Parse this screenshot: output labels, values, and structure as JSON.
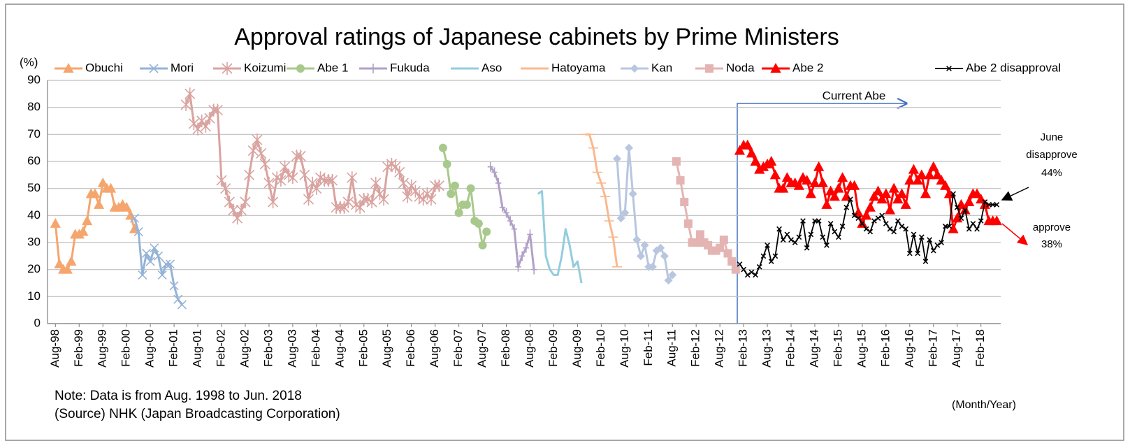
{
  "chart_data": {
    "type": "line",
    "title": "Approval ratings of Japanese cabinets by Prime Ministers",
    "y_label": "(%)",
    "x_label": "(Month/Year)",
    "notes": [
      "Note: Data is from Aug. 1998 to  Jun. 2018",
      "(Source) NHK (Japan Broadcasting Corporation)"
    ],
    "annotations": [
      "Current Abe",
      "June",
      "disapprove",
      "44%",
      "approve",
      "38%"
    ],
    "ylim": [
      0,
      90
    ],
    "yticks": [
      0,
      10,
      20,
      30,
      40,
      50,
      60,
      70,
      80,
      90
    ],
    "xlim": [
      "Jun-98",
      "Jul-18"
    ],
    "xticks": [
      "Aug-98",
      "Feb-99",
      "Aug-99",
      "Feb-00",
      "Aug-00",
      "Feb-01",
      "Aug-01",
      "Feb-02",
      "Aug-02",
      "Feb-03",
      "Aug-03",
      "Feb-04",
      "Aug-04",
      "Feb-05",
      "Aug-05",
      "Feb-06",
      "Aug-06",
      "Feb-07",
      "Aug-07",
      "Feb-08",
      "Aug-08",
      "Feb-09",
      "Aug-09",
      "Feb-10",
      "Aug-10",
      "Feb-11",
      "Aug-11",
      "Feb-12",
      "Aug-12",
      "Feb-13",
      "Aug-13",
      "Feb-14",
      "Aug-14",
      "Feb-15",
      "Aug-15",
      "Feb-16",
      "Aug-16",
      "Feb-17",
      "Aug-17",
      "Feb-18"
    ],
    "grid": true,
    "legend": "top",
    "series": [
      {
        "name": "Obuchi",
        "color": "#f5a66e",
        "marker": "triangle",
        "x": [
          "Aug-98",
          "Sep-98",
          "Oct-98",
          "Nov-98",
          "Dec-98",
          "Jan-99",
          "Feb-99",
          "Mar-99",
          "Apr-99",
          "May-99",
          "Jun-99",
          "Jul-99",
          "Aug-99",
          "Sep-99",
          "Oct-99",
          "Nov-99",
          "Dec-99",
          "Jan-00",
          "Feb-00",
          "Mar-00",
          "Apr-00"
        ],
        "values": [
          37,
          22,
          20,
          20,
          23,
          33,
          33,
          34,
          38,
          48,
          48,
          44,
          52,
          50,
          50,
          43,
          43,
          44,
          43,
          40,
          35
        ]
      },
      {
        "name": "Mori",
        "color": "#95b3d7",
        "marker": "x",
        "x": [
          "Apr-00",
          "May-00",
          "Jun-00",
          "Jul-00",
          "Aug-00",
          "Sep-00",
          "Oct-00",
          "Nov-00",
          "Dec-00",
          "Jan-01",
          "Feb-01",
          "Mar-01",
          "Apr-01"
        ],
        "values": [
          39,
          34,
          18,
          26,
          23,
          28,
          25,
          18,
          22,
          22,
          14,
          9,
          7
        ]
      },
      {
        "name": "Koizumi",
        "color": "#d9a3a0",
        "marker": "asterisk",
        "x": [
          "May-01",
          "Jun-01",
          "Jul-01",
          "Aug-01",
          "Sep-01",
          "Oct-01",
          "Nov-01",
          "Dec-01",
          "Jan-02",
          "Feb-02",
          "Mar-02",
          "Apr-02",
          "May-02",
          "Jun-02",
          "Jul-02",
          "Aug-02",
          "Sep-02",
          "Oct-02",
          "Nov-02",
          "Dec-02",
          "Jan-03",
          "Feb-03",
          "Mar-03",
          "Apr-03",
          "May-03",
          "Jun-03",
          "Jul-03",
          "Aug-03",
          "Sep-03",
          "Oct-03",
          "Nov-03",
          "Dec-03",
          "Jan-04",
          "Feb-04",
          "Mar-04",
          "Apr-04",
          "May-04",
          "Jun-04",
          "Jul-04",
          "Aug-04",
          "Sep-04",
          "Oct-04",
          "Nov-04",
          "Dec-04",
          "Jan-05",
          "Feb-05",
          "Mar-05",
          "Apr-05",
          "May-05",
          "Jun-05",
          "Jul-05",
          "Aug-05",
          "Sep-05",
          "Oct-05",
          "Nov-05",
          "Dec-05",
          "Jan-06",
          "Feb-06",
          "Mar-06",
          "Apr-06",
          "May-06",
          "Jun-06",
          "Jul-06",
          "Aug-06",
          "Sep-06"
        ],
        "values": [
          81,
          85,
          74,
          72,
          75,
          73,
          76,
          79,
          79,
          53,
          50,
          45,
          42,
          39,
          42,
          45,
          55,
          64,
          68,
          63,
          59,
          52,
          45,
          54,
          53,
          58,
          55,
          54,
          62,
          62,
          55,
          46,
          52,
          50,
          54,
          53,
          53,
          53,
          43,
          43,
          43,
          45,
          54,
          44,
          43,
          46,
          46,
          45,
          52,
          48,
          46,
          58,
          59,
          58,
          56,
          52,
          47,
          51,
          49,
          47,
          46,
          48,
          46,
          51,
          51
        ]
      },
      {
        "name": "Abe 1",
        "color": "#a9c98c",
        "marker": "circle",
        "x": [
          "Oct-06",
          "Nov-06",
          "Dec-06",
          "Jan-07",
          "Feb-07",
          "Mar-07",
          "Apr-07",
          "May-07",
          "Jun-07",
          "Jul-07",
          "Aug-07",
          "Sep-07"
        ],
        "values": [
          65,
          59,
          48,
          51,
          41,
          44,
          44,
          50,
          38,
          37,
          29,
          34
        ]
      },
      {
        "name": "Fukuda",
        "color": "#b1a0c7",
        "marker": "plus",
        "x": [
          "Oct-07",
          "Nov-07",
          "Dec-07",
          "Jan-08",
          "Feb-08",
          "Mar-08",
          "Apr-08",
          "May-08",
          "Jun-08",
          "Jul-08",
          "Aug-08",
          "Sep-08"
        ],
        "values": [
          58,
          56,
          52,
          43,
          41,
          38,
          35,
          21,
          25,
          28,
          33,
          20
        ]
      },
      {
        "name": "Aso",
        "color": "#93cddd",
        "marker": "none",
        "x": [
          "Oct-08",
          "Nov-08",
          "Dec-08",
          "Jan-09",
          "Feb-09",
          "Mar-09",
          "Apr-09",
          "May-09",
          "Jun-09",
          "Jul-09",
          "Aug-09",
          "Sep-09"
        ],
        "values": [
          48,
          49,
          25,
          20,
          18,
          18,
          25,
          35,
          29,
          21,
          23,
          15
        ]
      },
      {
        "name": "Hatoyama",
        "color": "#fab88e",
        "marker": "dash",
        "x": [
          "Oct-09",
          "Nov-09",
          "Dec-09",
          "Jan-10",
          "Feb-10",
          "Mar-10",
          "Apr-10",
          "May-10",
          "Jun-10"
        ],
        "values": [
          70,
          70,
          65,
          56,
          52,
          47,
          38,
          32,
          21
        ]
      },
      {
        "name": "Kan",
        "color": "#b8c6e0",
        "marker": "diamond",
        "x": [
          "Jun-10",
          "Jul-10",
          "Aug-10",
          "Sep-10",
          "Oct-10",
          "Nov-10",
          "Dec-10",
          "Jan-11",
          "Feb-11",
          "Mar-11",
          "Apr-11",
          "May-11",
          "Jun-11",
          "Jul-11",
          "Aug-11"
        ],
        "values": [
          61,
          39,
          41,
          65,
          48,
          31,
          25,
          29,
          21,
          21,
          27,
          28,
          25,
          16,
          18
        ]
      },
      {
        "name": "Noda",
        "color": "#e4b4b3",
        "marker": "square",
        "x": [
          "Sep-11",
          "Oct-11",
          "Nov-11",
          "Dec-11",
          "Jan-12",
          "Feb-12",
          "Mar-12",
          "Apr-12",
          "May-12",
          "Jun-12",
          "Jul-12",
          "Aug-12",
          "Sep-12",
          "Oct-12",
          "Nov-12",
          "Dec-12"
        ],
        "values": [
          60,
          53,
          45,
          37,
          30,
          30,
          33,
          30,
          29,
          27,
          27,
          28,
          31,
          26,
          23,
          20
        ]
      },
      {
        "name": "Abe 2",
        "color": "#ff0000",
        "marker": "triangle",
        "x": [
          "Jan-13",
          "Feb-13",
          "Mar-13",
          "Apr-13",
          "May-13",
          "Jun-13",
          "Jul-13",
          "Aug-13",
          "Sep-13",
          "Oct-13",
          "Nov-13",
          "Dec-13",
          "Jan-14",
          "Feb-14",
          "Mar-14",
          "Apr-14",
          "May-14",
          "Jun-14",
          "Jul-14",
          "Aug-14",
          "Sep-14",
          "Oct-14",
          "Nov-14",
          "Dec-14",
          "Jan-15",
          "Feb-15",
          "Mar-15",
          "Apr-15",
          "May-15",
          "Jun-15",
          "Jul-15",
          "Aug-15",
          "Sep-15",
          "Oct-15",
          "Nov-15",
          "Dec-15",
          "Jan-16",
          "Feb-16",
          "Mar-16",
          "Apr-16",
          "May-16",
          "Jun-16",
          "Jul-16",
          "Aug-16",
          "Sep-16",
          "Oct-16",
          "Nov-16",
          "Dec-16",
          "Jan-17",
          "Feb-17",
          "Mar-17",
          "Apr-17",
          "May-17",
          "Jun-17",
          "Jul-17",
          "Aug-17",
          "Sep-17",
          "Oct-17",
          "Nov-17",
          "Dec-17",
          "Jan-18",
          "Feb-18",
          "Mar-18",
          "Apr-18",
          "May-18",
          "Jun-18"
        ],
        "values": [
          64,
          66,
          66,
          63,
          60,
          57,
          58,
          59,
          60,
          55,
          50,
          50,
          54,
          52,
          52,
          51,
          54,
          53,
          48,
          52,
          58,
          52,
          44,
          49,
          47,
          50,
          54,
          47,
          51,
          51,
          41,
          37,
          40,
          43,
          47,
          49,
          46,
          48,
          42,
          50,
          46,
          48,
          44,
          53,
          57,
          53,
          55,
          48,
          55,
          58,
          55,
          53,
          51,
          48,
          35,
          39,
          44,
          42,
          45,
          48,
          48,
          46,
          44,
          38,
          38,
          38
        ]
      },
      {
        "name": "Abe 2 disapproval",
        "color": "#000000",
        "marker": "x",
        "x": [
          "Jan-13",
          "Feb-13",
          "Mar-13",
          "Apr-13",
          "May-13",
          "Jun-13",
          "Jul-13",
          "Aug-13",
          "Sep-13",
          "Oct-13",
          "Nov-13",
          "Dec-13",
          "Jan-14",
          "Feb-14",
          "Mar-14",
          "Apr-14",
          "May-14",
          "Jun-14",
          "Jul-14",
          "Aug-14",
          "Sep-14",
          "Oct-14",
          "Nov-14",
          "Dec-14",
          "Jan-15",
          "Feb-15",
          "Mar-15",
          "Apr-15",
          "May-15",
          "Jun-15",
          "Jul-15",
          "Aug-15",
          "Sep-15",
          "Oct-15",
          "Nov-15",
          "Dec-15",
          "Jan-16",
          "Feb-16",
          "Mar-16",
          "Apr-16",
          "May-16",
          "Jun-16",
          "Jul-16",
          "Aug-16",
          "Sep-16",
          "Oct-16",
          "Nov-16",
          "Dec-16",
          "Jan-17",
          "Feb-17",
          "Mar-17",
          "Apr-17",
          "May-17",
          "Jun-17",
          "Jul-17",
          "Aug-17",
          "Sep-17",
          "Oct-17",
          "Nov-17",
          "Dec-17",
          "Jan-18",
          "Feb-18",
          "Mar-18",
          "Apr-18",
          "May-18",
          "Jun-18"
        ],
        "values": [
          22,
          20,
          18,
          19,
          18,
          21,
          25,
          29,
          23,
          25,
          35,
          31,
          33,
          31,
          30,
          32,
          38,
          28,
          33,
          38,
          38,
          32,
          29,
          37,
          34,
          32,
          36,
          43,
          46,
          40,
          39,
          37,
          35,
          34,
          38,
          39,
          40,
          37,
          35,
          34,
          38,
          36,
          35,
          26,
          33,
          26,
          32,
          23,
          31,
          27,
          29,
          30,
          36,
          36,
          48,
          43,
          39,
          42,
          35,
          37,
          35,
          38,
          45,
          44,
          44,
          44
        ]
      }
    ]
  }
}
